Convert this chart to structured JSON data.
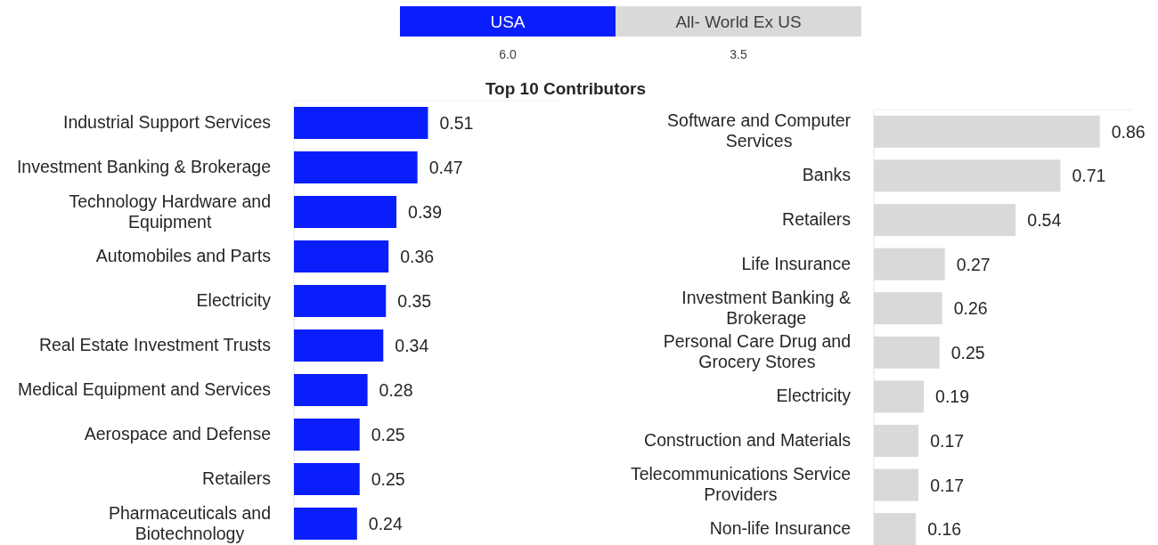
{
  "chart_data": [
    {
      "type": "other",
      "title": "Top 10 Contributors",
      "categories": [
        "USA",
        "All- World Ex US"
      ],
      "annotations": [
        "6.0",
        "3.5"
      ],
      "colors": [
        "#0a1efc",
        "#d9d9d9"
      ]
    },
    {
      "type": "bar",
      "orientation": "horizontal",
      "data_labels": true,
      "color": "#0a1efc",
      "categories": [
        "Industrial Support Services",
        "Investment Banking & Brokerage",
        "Technology Hardware and Equipment",
        "Automobiles and Parts",
        "Electricity",
        "Real Estate Investment Trusts",
        "Medical Equipment and Services",
        "Aerospace and Defense",
        "Retailers",
        "Pharmaceuticals and Biotechnology"
      ],
      "values": [
        0.51,
        0.47,
        0.39,
        0.36,
        0.35,
        0.34,
        0.28,
        0.25,
        0.25,
        0.24
      ]
    },
    {
      "type": "bar",
      "orientation": "horizontal",
      "data_labels": true,
      "color": "#d9d9d9",
      "categories": [
        "Software and Computer Services",
        "Banks",
        "Retailers",
        "Life Insurance",
        "Investment Banking & Brokerage",
        "Personal Care Drug and Grocery Stores",
        "Electricity",
        "Construction and Materials",
        "Telecommunications Service Providers",
        "Non-life Insurance"
      ],
      "values": [
        0.86,
        0.71,
        0.54,
        0.27,
        0.26,
        0.25,
        0.19,
        0.17,
        0.17,
        0.16
      ]
    }
  ]
}
